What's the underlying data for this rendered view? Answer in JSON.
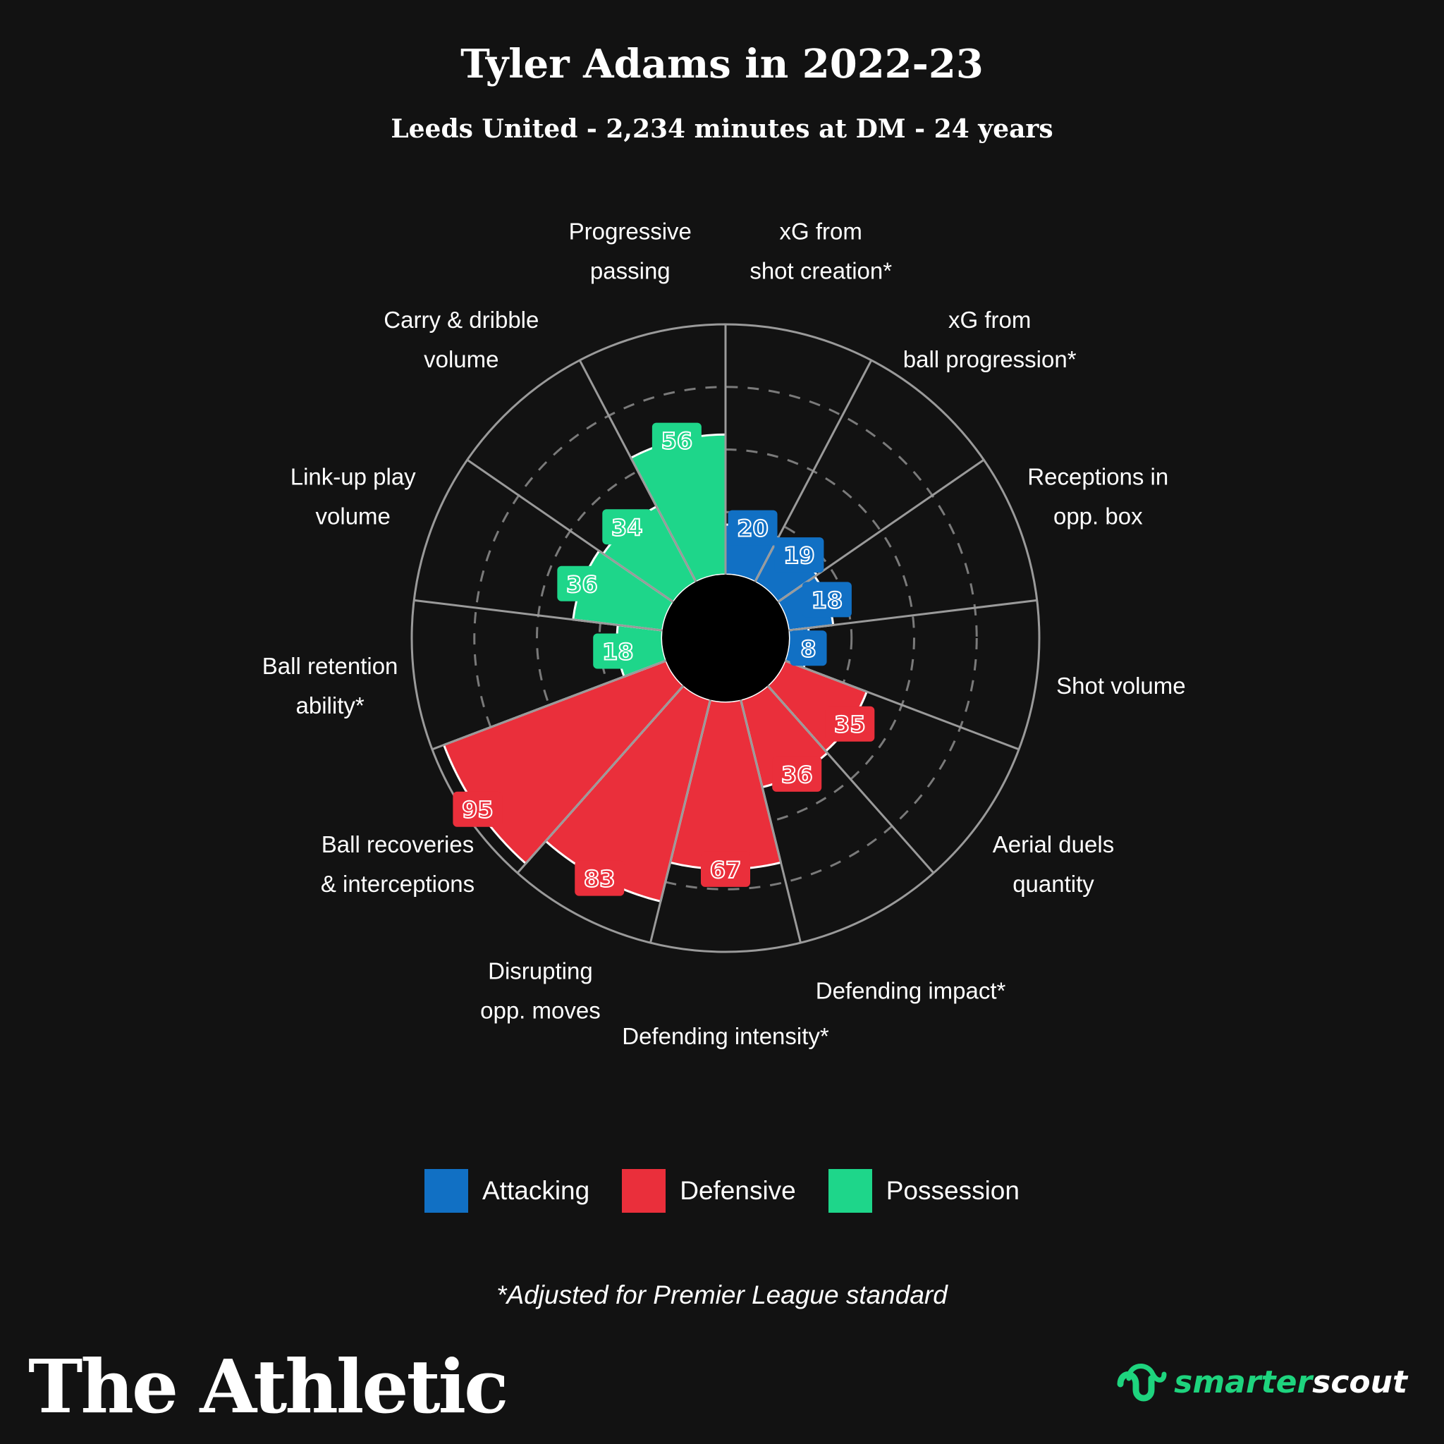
{
  "header": {
    "title": "Tyler Adams in 2022-23",
    "subtitle": "Leeds United - 2,234 minutes at DM - 24 years"
  },
  "chart_data": {
    "type": "polar-bar",
    "rlim": [
      0,
      100
    ],
    "start_angle_deg": 0,
    "direction": "clockwise",
    "categories": [
      {
        "label_lines": [
          "xG from",
          "shot creation*"
        ],
        "value": 20,
        "group": "Attacking"
      },
      {
        "label_lines": [
          "xG from",
          "ball progression*"
        ],
        "value": 19,
        "group": "Attacking"
      },
      {
        "label_lines": [
          "Receptions in",
          "opp. box"
        ],
        "value": 18,
        "group": "Attacking"
      },
      {
        "label_lines": [
          "Shot volume"
        ],
        "value": 8,
        "group": "Attacking"
      },
      {
        "label_lines": [
          "Aerial duels",
          "quantity"
        ],
        "value": 35,
        "group": "Defensive"
      },
      {
        "label_lines": [
          "Defending impact*"
        ],
        "value": 36,
        "group": "Defensive"
      },
      {
        "label_lines": [
          "Defending intensity*"
        ],
        "value": 67,
        "group": "Defensive"
      },
      {
        "label_lines": [
          "Disrupting",
          "opp. moves"
        ],
        "value": 83,
        "group": "Defensive"
      },
      {
        "label_lines": [
          "Ball recoveries",
          "& interceptions"
        ],
        "value": 95,
        "group": "Defensive"
      },
      {
        "label_lines": [
          "Ball retention",
          "ability*"
        ],
        "value": 18,
        "group": "Possession"
      },
      {
        "label_lines": [
          "Link-up play",
          "volume"
        ],
        "value": 36,
        "group": "Possession"
      },
      {
        "label_lines": [
          "Carry & dribble",
          "volume"
        ],
        "value": 34,
        "group": "Possession"
      },
      {
        "label_lines": [
          "Progressive",
          "passing"
        ],
        "value": 56,
        "group": "Possession"
      }
    ],
    "legend": [
      {
        "name": "Attacking",
        "color": "#1170c4"
      },
      {
        "name": "Defensive",
        "color": "#ea2f3b"
      },
      {
        "name": "Possession",
        "color": "#1ed68a"
      }
    ],
    "gridlines": "dashed rings at 25, 50, 75; solid outer ring at 100",
    "legend_position": "bottom-center"
  },
  "footnote": "*Adjusted for Premier League standard",
  "branding": {
    "publisher": "The Athletic",
    "partner_part1": "smarter",
    "partner_part2": "scout",
    "partner_icon": "smarterscout-logo-icon"
  }
}
